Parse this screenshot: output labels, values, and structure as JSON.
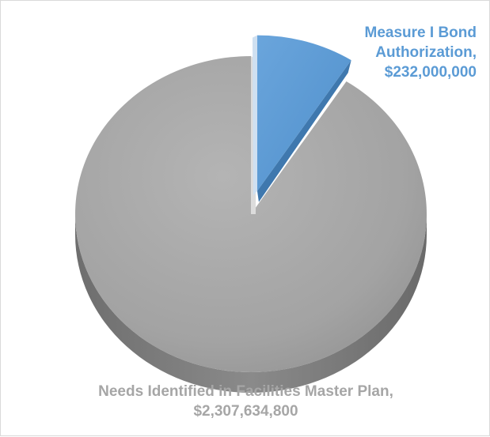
{
  "chart_data": {
    "type": "pie",
    "style": "3d-exploded",
    "slices": [
      {
        "label_lines": [
          "Needs Identified in Facilities Master Plan,",
          "$2,307,634,800"
        ],
        "value": 2307634800,
        "color": "#a6a6a6",
        "label_color": "#a6a6a6"
      },
      {
        "label_lines": [
          "Measure I Bond",
          "Authorization,",
          "$232,000,000"
        ],
        "value": 232000000,
        "color": "#5b9bd5",
        "label_color": "#5b9bd5",
        "exploded": true
      }
    ],
    "legend": "none"
  }
}
